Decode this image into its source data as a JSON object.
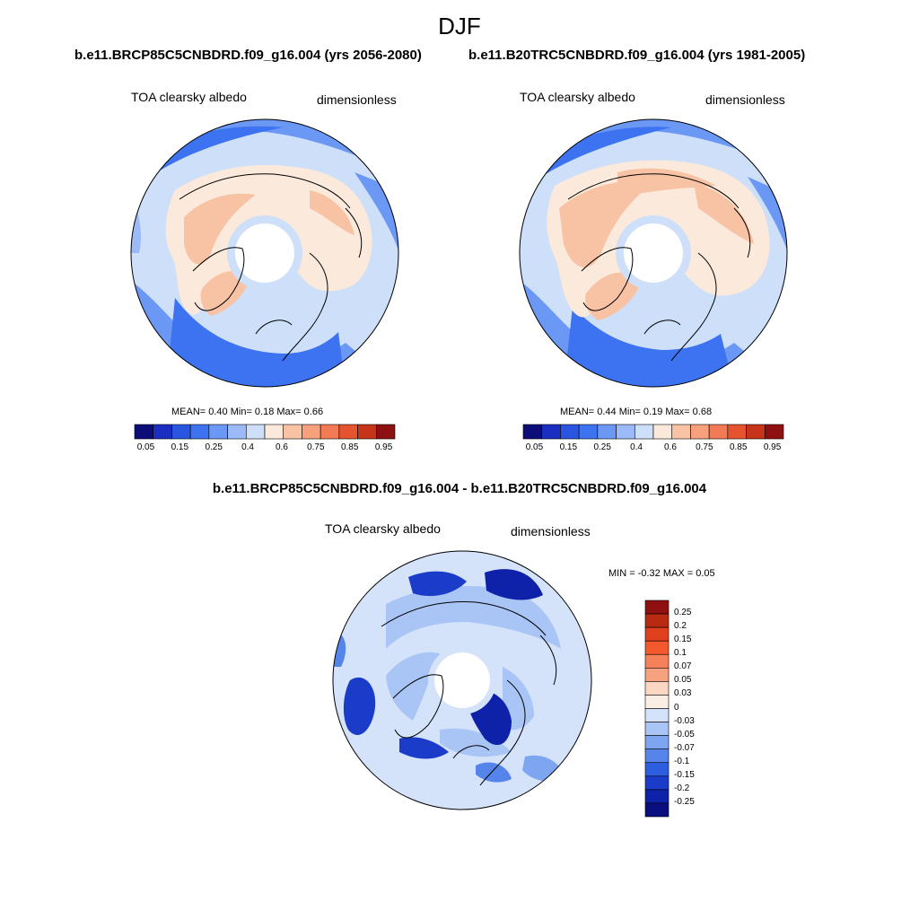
{
  "title": "DJF",
  "panels": [
    {
      "case": "b.e11.BRCP85C5CNBDRD.f09_g16.004 (yrs 2056-2080)",
      "variable": "TOA clearsky albedo",
      "units": "dimensionless",
      "stats": "MEAN=   0.40  Min=   0.18  Max=   0.66"
    },
    {
      "case": "b.e11.B20TRC5CNBDRD.f09_g16.004 (yrs 1981-2005)",
      "variable": "TOA clearsky albedo",
      "units": "dimensionless",
      "stats": "MEAN=   0.44  Min=   0.19  Max=   0.68"
    }
  ],
  "difference": {
    "title": "b.e11.BRCP85C5CNBDRD.f09_g16.004 - b.e11.B20TRC5CNBDRD.f09_g16.004",
    "variable": "TOA clearsky albedo",
    "units": "dimensionless",
    "stats": "MIN =  -0.32 MAX =   0.05"
  },
  "colorbar_main": {
    "colors": [
      "#0d0d7a",
      "#1a2fbf",
      "#2a55e0",
      "#3d72f0",
      "#6b97f5",
      "#9cbaf7",
      "#cddff9",
      "#fbeadb",
      "#f8c3a5",
      "#f6a07c",
      "#f27a55",
      "#e5532f",
      "#c6341a",
      "#8f1010"
    ],
    "ticks": [
      "0.05",
      "0.15",
      "0.25",
      "0.4",
      "0.6",
      "0.75",
      "0.85",
      "0.95"
    ]
  },
  "colorbar_diff": {
    "colors": [
      "#8f1010",
      "#b82a12",
      "#e0401d",
      "#f4582d",
      "#f4815a",
      "#f6a27f",
      "#fbd6c2",
      "#fbeee5",
      "#d4e3fa",
      "#a9c5f5",
      "#7ea6f0",
      "#5585eb",
      "#2e5ee0",
      "#1a3cc9",
      "#0d22a8",
      "#0a0f80"
    ],
    "ticks": [
      "0.25",
      "0.2",
      "0.15",
      "0.1",
      "0.07",
      "0.05",
      "0.03",
      "0",
      "-0.03",
      "-0.05",
      "-0.07",
      "-0.1",
      "-0.15",
      "-0.2",
      "-0.25"
    ]
  }
}
